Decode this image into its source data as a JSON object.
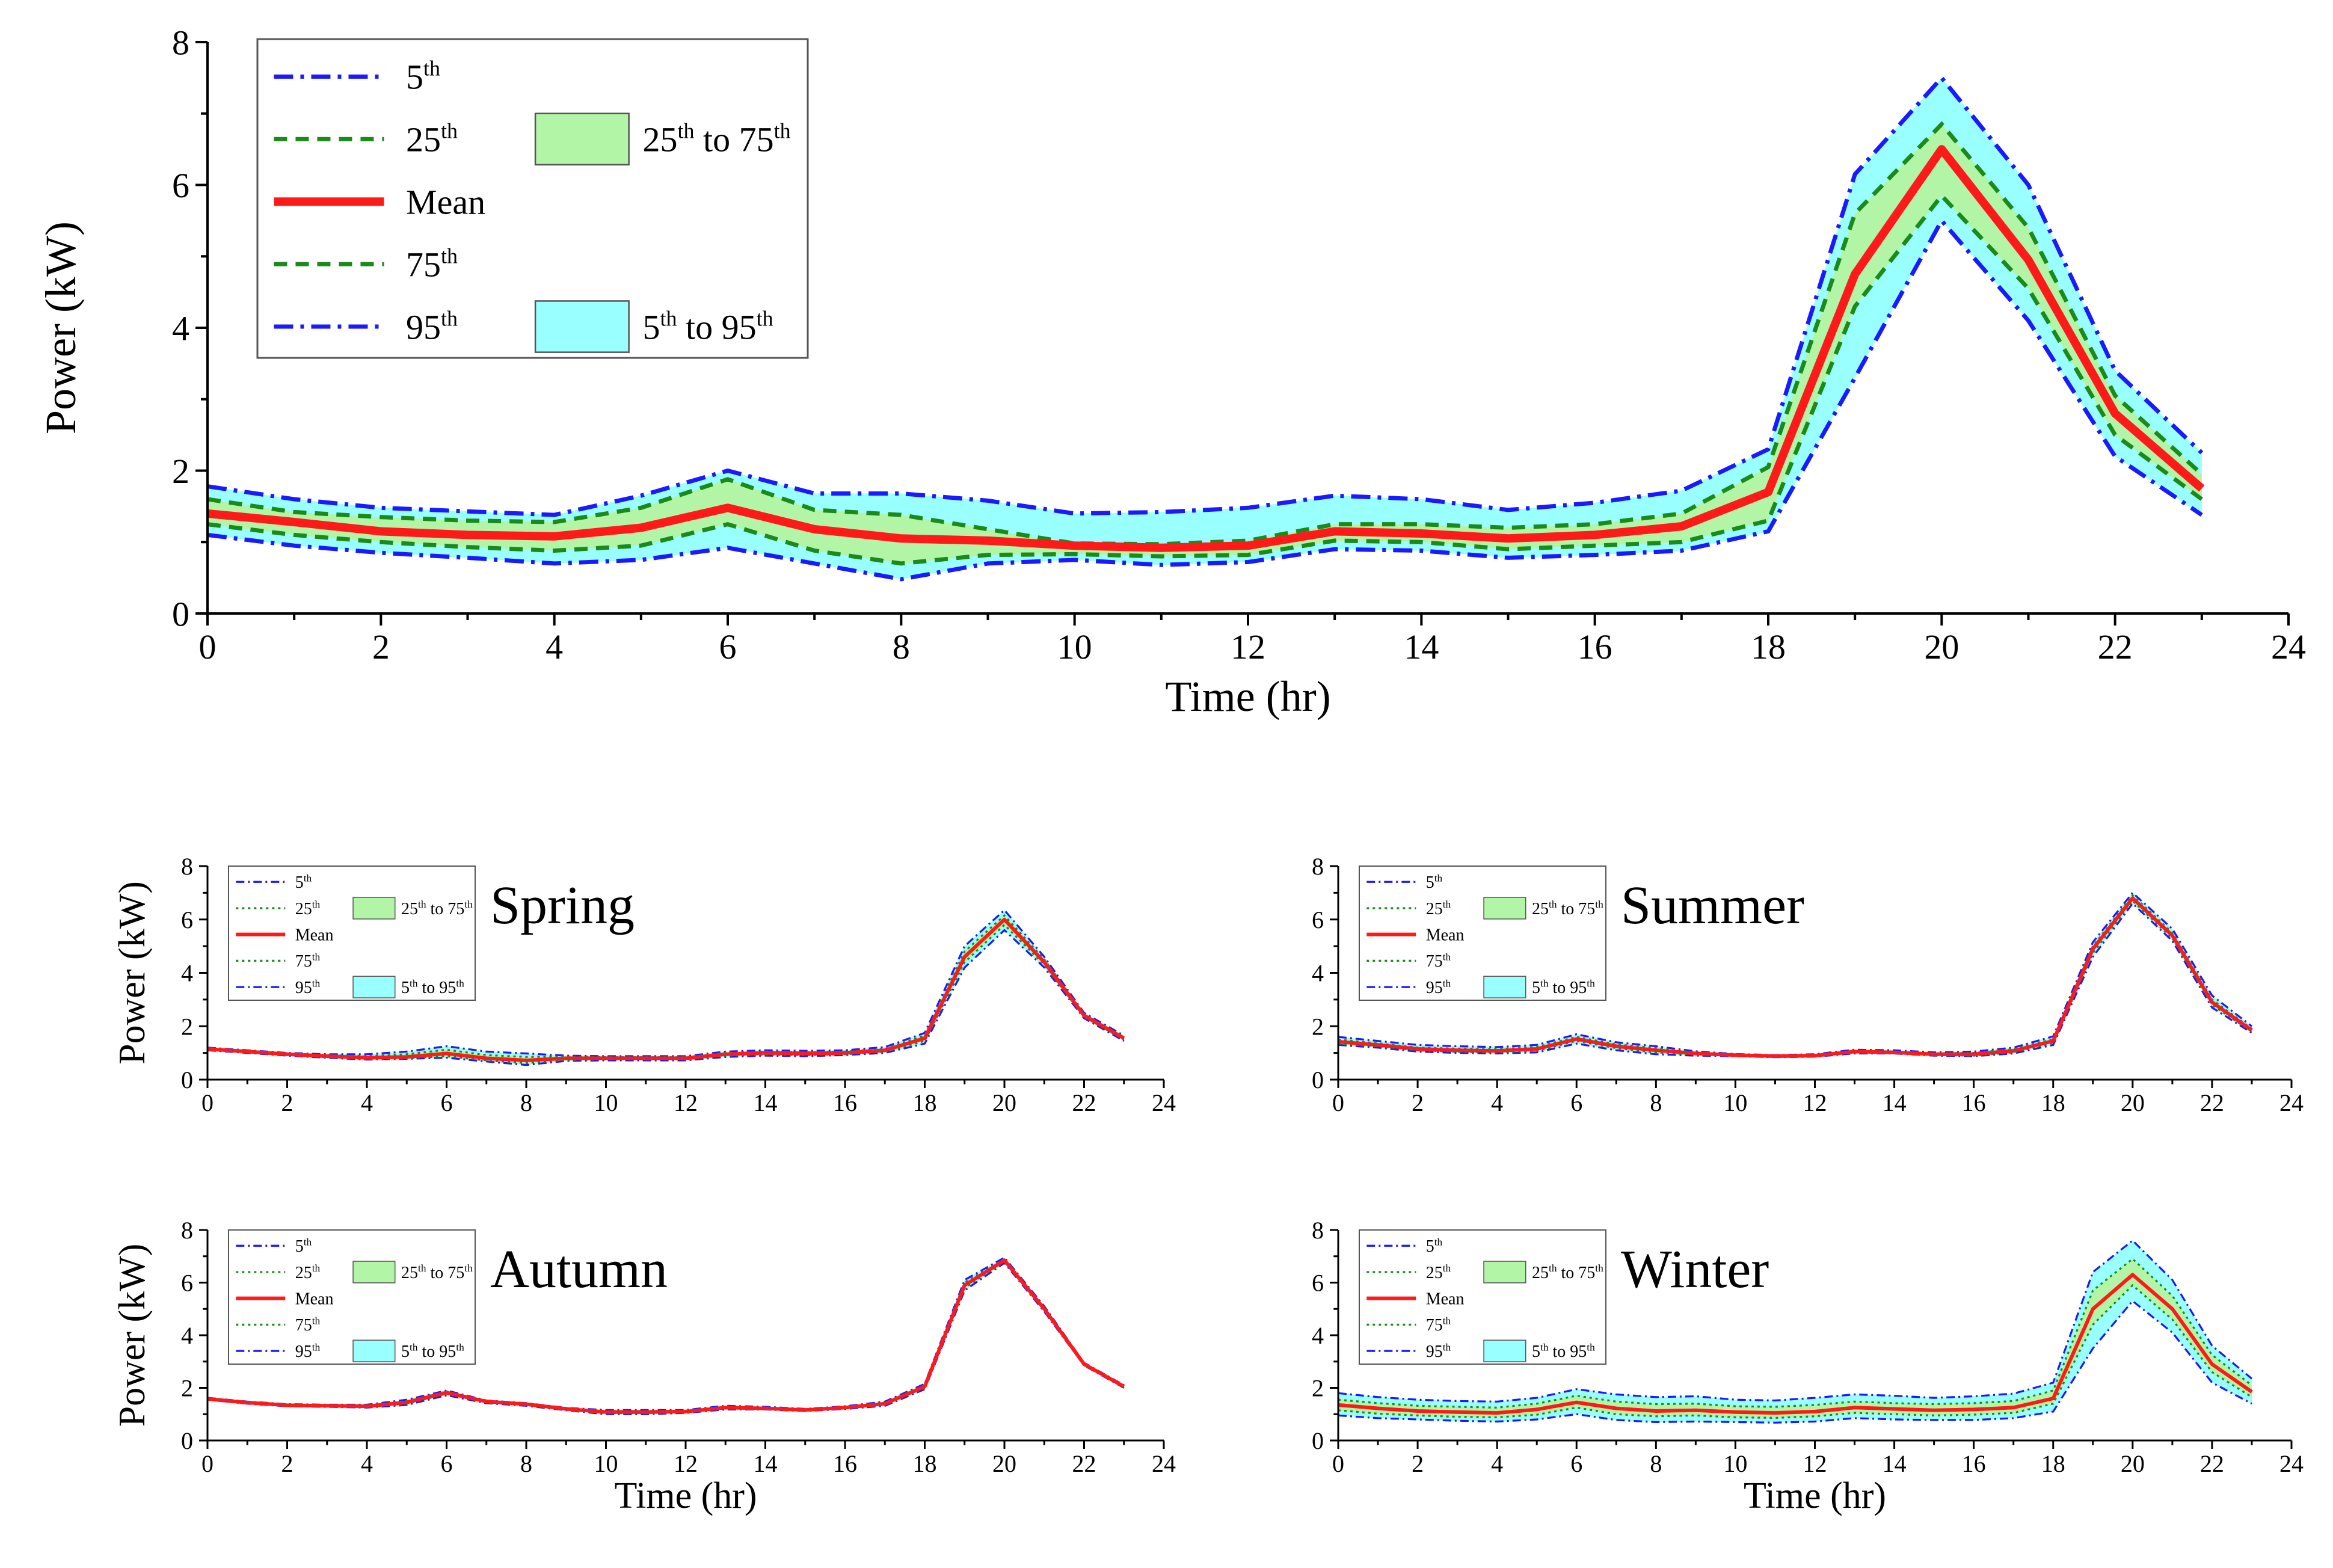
{
  "colors": {
    "p5_95_line": "#1a1aff",
    "p25_75_line": "#1a8a1a",
    "mean_line": "#ff1a1a",
    "band_5_95": "#99ffff",
    "band_25_75": "#b3f5a6",
    "axis": "#000000"
  },
  "chart_data": [
    {
      "id": "overall",
      "type": "line",
      "title": "",
      "xlabel": "Time (hr)",
      "ylabel": "Power (kW)",
      "xlim": [
        0,
        24
      ],
      "ylim": [
        0,
        8
      ],
      "xticks": [
        0,
        2,
        4,
        6,
        8,
        10,
        12,
        14,
        16,
        18,
        20,
        22,
        24
      ],
      "yticks": [
        0,
        2,
        4,
        6,
        8
      ],
      "legend_position": "top-left",
      "legend": {
        "p5": "5",
        "p25": "25",
        "mean": "Mean",
        "p75": "75",
        "p95": "95",
        "sup": "th",
        "to": "to"
      },
      "x": [
        0,
        1,
        2,
        3,
        4,
        5,
        6,
        7,
        8,
        9,
        10,
        11,
        12,
        13,
        14,
        15,
        16,
        17,
        18,
        19,
        20,
        21,
        22,
        23
      ],
      "series": [
        {
          "name": "5th",
          "values": [
            1.1,
            0.95,
            0.85,
            0.78,
            0.7,
            0.75,
            0.92,
            0.7,
            0.48,
            0.7,
            0.75,
            0.68,
            0.72,
            0.9,
            0.88,
            0.78,
            0.82,
            0.88,
            1.15,
            3.3,
            5.5,
            4.1,
            2.2,
            1.38
          ]
        },
        {
          "name": "25th",
          "values": [
            1.25,
            1.1,
            1.0,
            0.93,
            0.88,
            0.95,
            1.25,
            0.88,
            0.7,
            0.82,
            0.83,
            0.8,
            0.82,
            1.02,
            1.0,
            0.9,
            0.95,
            1.0,
            1.3,
            4.3,
            5.85,
            4.55,
            2.5,
            1.6
          ]
        },
        {
          "name": "Mean",
          "values": [
            1.4,
            1.28,
            1.15,
            1.1,
            1.08,
            1.2,
            1.48,
            1.18,
            1.05,
            1.02,
            0.95,
            0.92,
            0.95,
            1.15,
            1.12,
            1.05,
            1.1,
            1.22,
            1.7,
            4.75,
            6.5,
            4.95,
            2.8,
            1.75
          ]
        },
        {
          "name": "75th",
          "values": [
            1.6,
            1.42,
            1.35,
            1.3,
            1.28,
            1.48,
            1.88,
            1.45,
            1.38,
            1.18,
            0.98,
            0.97,
            1.02,
            1.25,
            1.25,
            1.2,
            1.25,
            1.4,
            2.05,
            5.6,
            6.85,
            5.4,
            3.05,
            1.95
          ]
        },
        {
          "name": "95th",
          "values": [
            1.78,
            1.6,
            1.48,
            1.43,
            1.38,
            1.65,
            2.0,
            1.68,
            1.68,
            1.58,
            1.4,
            1.42,
            1.48,
            1.65,
            1.6,
            1.45,
            1.55,
            1.72,
            2.3,
            6.15,
            7.5,
            6.0,
            3.4,
            2.25
          ]
        }
      ]
    },
    {
      "id": "spring",
      "type": "line",
      "title": "Spring",
      "xlabel": "",
      "ylabel": "Power (kW)",
      "xlim": [
        0,
        24
      ],
      "ylim": [
        0,
        8
      ],
      "xticks": [
        0,
        2,
        4,
        6,
        8,
        10,
        12,
        14,
        16,
        18,
        20,
        22,
        24
      ],
      "yticks": [
        0,
        2,
        4,
        6,
        8
      ],
      "legend_position": "top-left",
      "legend": {
        "p5": "5",
        "p25": "25",
        "mean": "Mean",
        "p75": "75",
        "p95": "95",
        "sup": "th",
        "to": "to"
      },
      "x": [
        0,
        1,
        2,
        3,
        4,
        5,
        6,
        7,
        8,
        9,
        10,
        11,
        12,
        13,
        14,
        15,
        16,
        17,
        18,
        19,
        20,
        21,
        22,
        23
      ],
      "series": [
        {
          "name": "5th",
          "values": [
            1.1,
            1.0,
            0.9,
            0.82,
            0.75,
            0.78,
            0.82,
            0.68,
            0.55,
            0.7,
            0.72,
            0.72,
            0.72,
            0.85,
            0.9,
            0.88,
            0.92,
            1.0,
            1.35,
            4.2,
            5.6,
            4.2,
            2.3,
            1.45
          ]
        },
        {
          "name": "25th",
          "values": [
            1.12,
            1.02,
            0.92,
            0.84,
            0.78,
            0.8,
            0.88,
            0.72,
            0.62,
            0.74,
            0.76,
            0.76,
            0.76,
            0.9,
            0.94,
            0.92,
            0.95,
            1.05,
            1.45,
            4.4,
            5.8,
            4.3,
            2.35,
            1.5
          ]
        },
        {
          "name": "Mean",
          "values": [
            1.15,
            1.05,
            0.95,
            0.88,
            0.82,
            0.85,
            0.98,
            0.8,
            0.72,
            0.8,
            0.8,
            0.8,
            0.8,
            0.95,
            1.0,
            0.98,
            1.0,
            1.1,
            1.55,
            4.6,
            6.0,
            4.4,
            2.4,
            1.55
          ]
        },
        {
          "name": "75th",
          "values": [
            1.18,
            1.08,
            0.98,
            0.92,
            0.88,
            0.95,
            1.12,
            0.92,
            0.85,
            0.86,
            0.84,
            0.84,
            0.84,
            1.0,
            1.05,
            1.02,
            1.05,
            1.15,
            1.65,
            4.8,
            6.15,
            4.5,
            2.45,
            1.6
          ]
        },
        {
          "name": "95th",
          "values": [
            1.2,
            1.1,
            1.0,
            0.95,
            0.95,
            1.05,
            1.25,
            1.05,
            0.98,
            0.9,
            0.88,
            0.88,
            0.88,
            1.05,
            1.1,
            1.08,
            1.1,
            1.22,
            1.75,
            5.0,
            6.35,
            4.6,
            2.5,
            1.65
          ]
        }
      ]
    },
    {
      "id": "summer",
      "type": "line",
      "title": "Summer",
      "xlabel": "",
      "ylabel": "",
      "xlim": [
        0,
        24
      ],
      "ylim": [
        0,
        8
      ],
      "xticks": [
        0,
        2,
        4,
        6,
        8,
        10,
        12,
        14,
        16,
        18,
        20,
        22,
        24
      ],
      "yticks": [
        0,
        2,
        4,
        6,
        8
      ],
      "legend_position": "top-left",
      "legend": {
        "p5": "5",
        "p25": "25",
        "mean": "Mean",
        "p75": "75",
        "p95": "95",
        "sup": "th",
        "to": "to"
      },
      "x": [
        0,
        1,
        2,
        3,
        4,
        5,
        6,
        7,
        8,
        9,
        10,
        11,
        12,
        13,
        14,
        15,
        16,
        17,
        18,
        19,
        20,
        21,
        22,
        23
      ],
      "series": [
        {
          "name": "5th",
          "values": [
            1.3,
            1.2,
            1.05,
            1.0,
            0.98,
            1.02,
            1.35,
            1.1,
            0.95,
            0.9,
            0.88,
            0.84,
            0.86,
            0.98,
            0.98,
            0.9,
            0.88,
            0.98,
            1.3,
            4.6,
            6.6,
            5.2,
            2.7,
            1.75
          ]
        },
        {
          "name": "25th",
          "values": [
            1.35,
            1.25,
            1.1,
            1.04,
            1.02,
            1.08,
            1.45,
            1.18,
            1.02,
            0.94,
            0.9,
            0.86,
            0.88,
            1.02,
            1.0,
            0.92,
            0.9,
            1.02,
            1.38,
            4.75,
            6.7,
            5.3,
            2.8,
            1.8
          ]
        },
        {
          "name": "Mean",
          "values": [
            1.42,
            1.3,
            1.15,
            1.1,
            1.08,
            1.15,
            1.52,
            1.25,
            1.1,
            0.98,
            0.92,
            0.88,
            0.9,
            1.05,
            1.02,
            0.95,
            0.95,
            1.08,
            1.45,
            4.9,
            6.8,
            5.4,
            2.9,
            1.85
          ]
        },
        {
          "name": "75th",
          "values": [
            1.5,
            1.36,
            1.2,
            1.16,
            1.14,
            1.22,
            1.6,
            1.32,
            1.18,
            1.02,
            0.94,
            0.9,
            0.92,
            1.08,
            1.05,
            0.98,
            1.0,
            1.14,
            1.52,
            5.0,
            6.9,
            5.5,
            3.0,
            1.9
          ]
        },
        {
          "name": "95th",
          "values": [
            1.6,
            1.45,
            1.3,
            1.25,
            1.22,
            1.3,
            1.7,
            1.4,
            1.25,
            1.06,
            0.96,
            0.92,
            0.95,
            1.12,
            1.1,
            1.02,
            1.05,
            1.2,
            1.62,
            5.15,
            7.0,
            5.65,
            3.15,
            2.0
          ]
        }
      ]
    },
    {
      "id": "autumn",
      "type": "line",
      "title": "Autumn",
      "xlabel": "Time (hr)",
      "ylabel": "Power (kW)",
      "xlim": [
        0,
        24
      ],
      "ylim": [
        0,
        8
      ],
      "xticks": [
        0,
        2,
        4,
        6,
        8,
        10,
        12,
        14,
        16,
        18,
        20,
        22,
        24
      ],
      "yticks": [
        0,
        2,
        4,
        6,
        8
      ],
      "legend_position": "top-left",
      "legend": {
        "p5": "5",
        "p25": "25",
        "mean": "Mean",
        "p75": "75",
        "p95": "95",
        "sup": "th",
        "to": "to"
      },
      "x": [
        0,
        1,
        2,
        3,
        4,
        5,
        6,
        7,
        8,
        9,
        10,
        11,
        12,
        13,
        14,
        15,
        16,
        17,
        18,
        19,
        20,
        21,
        22,
        23
      ],
      "series": [
        {
          "name": "5th",
          "values": [
            1.55,
            1.4,
            1.3,
            1.28,
            1.25,
            1.35,
            1.72,
            1.42,
            1.32,
            1.15,
            1.0,
            1.0,
            1.05,
            1.18,
            1.18,
            1.12,
            1.2,
            1.32,
            1.95,
            5.7,
            6.75,
            4.9,
            2.85,
            2.0
          ]
        },
        {
          "name": "25th",
          "values": [
            1.56,
            1.42,
            1.32,
            1.3,
            1.28,
            1.4,
            1.78,
            1.45,
            1.35,
            1.18,
            1.04,
            1.04,
            1.08,
            1.22,
            1.2,
            1.14,
            1.22,
            1.36,
            2.0,
            5.8,
            6.8,
            4.95,
            2.88,
            2.02
          ]
        },
        {
          "name": "Mean",
          "values": [
            1.58,
            1.44,
            1.34,
            1.32,
            1.3,
            1.45,
            1.82,
            1.48,
            1.38,
            1.2,
            1.08,
            1.08,
            1.1,
            1.25,
            1.22,
            1.16,
            1.25,
            1.4,
            2.05,
            5.9,
            6.85,
            5.0,
            2.9,
            2.05
          ]
        },
        {
          "name": "75th",
          "values": [
            1.6,
            1.46,
            1.36,
            1.34,
            1.33,
            1.5,
            1.86,
            1.5,
            1.4,
            1.22,
            1.12,
            1.12,
            1.13,
            1.28,
            1.25,
            1.18,
            1.28,
            1.44,
            2.1,
            6.0,
            6.9,
            5.05,
            2.92,
            2.07
          ]
        },
        {
          "name": "95th",
          "values": [
            1.62,
            1.48,
            1.38,
            1.36,
            1.36,
            1.55,
            1.9,
            1.52,
            1.42,
            1.24,
            1.16,
            1.16,
            1.16,
            1.32,
            1.28,
            1.2,
            1.3,
            1.48,
            2.15,
            6.1,
            6.95,
            5.1,
            2.95,
            2.1
          ]
        }
      ]
    },
    {
      "id": "winter",
      "type": "line",
      "title": "Winter",
      "xlabel": "Time (hr)",
      "ylabel": "",
      "xlim": [
        0,
        24
      ],
      "ylim": [
        0,
        8
      ],
      "xticks": [
        0,
        2,
        4,
        6,
        8,
        10,
        12,
        14,
        16,
        18,
        20,
        22,
        24
      ],
      "yticks": [
        0,
        2,
        4,
        6,
        8
      ],
      "legend_position": "top-left",
      "legend": {
        "p5": "5",
        "p25": "25",
        "mean": "Mean",
        "p75": "75",
        "p95": "95",
        "sup": "th",
        "to": "to"
      },
      "x": [
        0,
        1,
        2,
        3,
        4,
        5,
        6,
        7,
        8,
        9,
        10,
        11,
        12,
        13,
        14,
        15,
        16,
        17,
        18,
        19,
        20,
        21,
        22,
        23
      ],
      "series": [
        {
          "name": "5th",
          "values": [
            0.95,
            0.85,
            0.8,
            0.75,
            0.72,
            0.8,
            1.0,
            0.78,
            0.7,
            0.72,
            0.7,
            0.68,
            0.72,
            0.85,
            0.8,
            0.78,
            0.78,
            0.85,
            1.1,
            3.5,
            5.3,
            4.1,
            2.2,
            1.4
          ]
        },
        {
          "name": "25th",
          "values": [
            1.15,
            1.02,
            0.95,
            0.9,
            0.88,
            0.98,
            1.25,
            1.0,
            0.92,
            0.95,
            0.88,
            0.86,
            0.92,
            1.05,
            1.0,
            0.95,
            0.98,
            1.05,
            1.4,
            4.4,
            5.9,
            4.6,
            2.6,
            1.65
          ]
        },
        {
          "name": "Mean",
          "values": [
            1.35,
            1.22,
            1.12,
            1.08,
            1.05,
            1.18,
            1.45,
            1.22,
            1.12,
            1.15,
            1.08,
            1.05,
            1.1,
            1.25,
            1.2,
            1.15,
            1.18,
            1.25,
            1.6,
            5.0,
            6.3,
            5.0,
            2.9,
            1.85
          ]
        },
        {
          "name": "75th",
          "values": [
            1.55,
            1.42,
            1.32,
            1.28,
            1.25,
            1.4,
            1.7,
            1.48,
            1.38,
            1.4,
            1.3,
            1.28,
            1.35,
            1.48,
            1.42,
            1.38,
            1.42,
            1.5,
            1.9,
            5.7,
            6.9,
            5.5,
            3.25,
            2.1
          ]
        },
        {
          "name": "95th",
          "values": [
            1.8,
            1.65,
            1.55,
            1.5,
            1.48,
            1.62,
            1.95,
            1.75,
            1.65,
            1.68,
            1.55,
            1.52,
            1.62,
            1.75,
            1.7,
            1.62,
            1.68,
            1.78,
            2.2,
            6.4,
            7.6,
            6.1,
            3.6,
            2.35
          ]
        }
      ]
    }
  ]
}
